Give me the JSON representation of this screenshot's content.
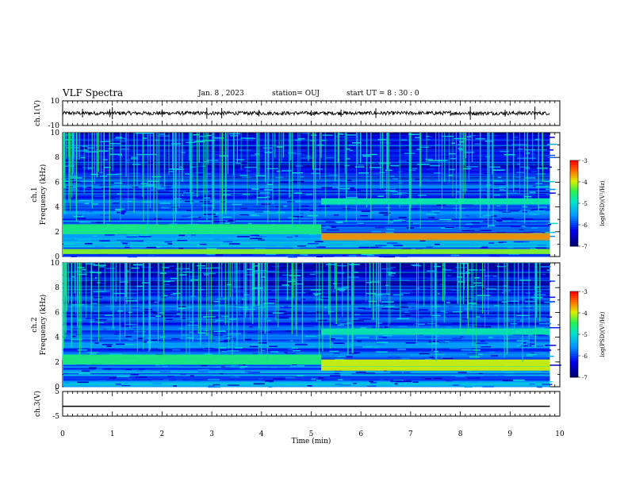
{
  "header": {
    "title": "VLF Spectra",
    "date": "Jan. 8 , 2023",
    "station": "station= OUJ",
    "start_ut": "start UT = 8 : 30 : 0"
  },
  "chart_data": [
    {
      "type": "line",
      "panel": "ch1-waveform",
      "ylabel": "ch.1(V)",
      "ylim": [
        -10,
        10
      ],
      "y_ticks": [
        "10",
        "-10"
      ],
      "xlim": [
        0,
        10
      ],
      "series": [
        {
          "x": [
            0,
            9.8
          ],
          "values": [
            0,
            0
          ]
        }
      ]
    },
    {
      "type": "heatmap",
      "panel": "ch1-spectrogram",
      "ylabel": "ch.1\nFrequency (kHz)",
      "ylim": [
        0,
        10
      ],
      "y_ticks": [
        "0",
        "2",
        "4",
        "6",
        "8",
        "10"
      ],
      "xlim": [
        0,
        10
      ],
      "data_xlim": [
        0,
        9.8
      ],
      "bands": [
        {
          "x": [
            0,
            5.2
          ],
          "y": [
            1.8,
            2.6
          ],
          "level": -4.6
        },
        {
          "x": [
            5.2,
            9.8
          ],
          "y": [
            1.3,
            1.9
          ],
          "level": -3.6
        },
        {
          "x": [
            5.2,
            9.8
          ],
          "y": [
            4.2,
            4.7
          ],
          "level": -4.8
        },
        {
          "x": [
            0,
            9.8
          ],
          "y": [
            0.2,
            0.6
          ],
          "level": -4.2
        }
      ],
      "colorbar": {
        "label": "log(PSD)(V²/Hz)",
        "ticks": [
          "-3",
          "-4",
          "-5",
          "-6",
          "-7"
        ],
        "range": [
          -7,
          -3
        ]
      }
    },
    {
      "type": "heatmap",
      "panel": "ch2-spectrogram",
      "ylabel": "ch.2\nFrequency (kHz)",
      "ylim": [
        0,
        10
      ],
      "y_ticks": [
        "0",
        "2",
        "4",
        "6",
        "8",
        "10"
      ],
      "xlim": [
        0,
        10
      ],
      "data_xlim": [
        0,
        9.8
      ],
      "bands": [
        {
          "x": [
            0,
            5.2
          ],
          "y": [
            1.8,
            2.6
          ],
          "level": -4.6
        },
        {
          "x": [
            5.2,
            9.8
          ],
          "y": [
            1.3,
            2.2
          ],
          "level": -4.0
        },
        {
          "x": [
            5.2,
            9.8
          ],
          "y": [
            4.2,
            4.7
          ],
          "level": -4.8
        }
      ],
      "colorbar": {
        "label": "log(PSD)(V²/Hz)",
        "ticks": [
          "-3",
          "-4",
          "-5",
          "-6",
          "-7"
        ],
        "range": [
          -7,
          -3
        ]
      }
    },
    {
      "type": "line",
      "panel": "ch3-waveform",
      "ylabel": "ch.3(V)",
      "ylim": [
        -5,
        5
      ],
      "y_ticks": [
        "5",
        "-5"
      ],
      "xlim": [
        0,
        10
      ],
      "x_ticks": [
        "0",
        "1",
        "2",
        "3",
        "4",
        "5",
        "6",
        "7",
        "8",
        "9",
        "10"
      ],
      "xlabel": "Time (min)",
      "series": [
        {
          "x": [
            0,
            9.8
          ],
          "values": [
            -1,
            -1
          ]
        }
      ]
    }
  ]
}
